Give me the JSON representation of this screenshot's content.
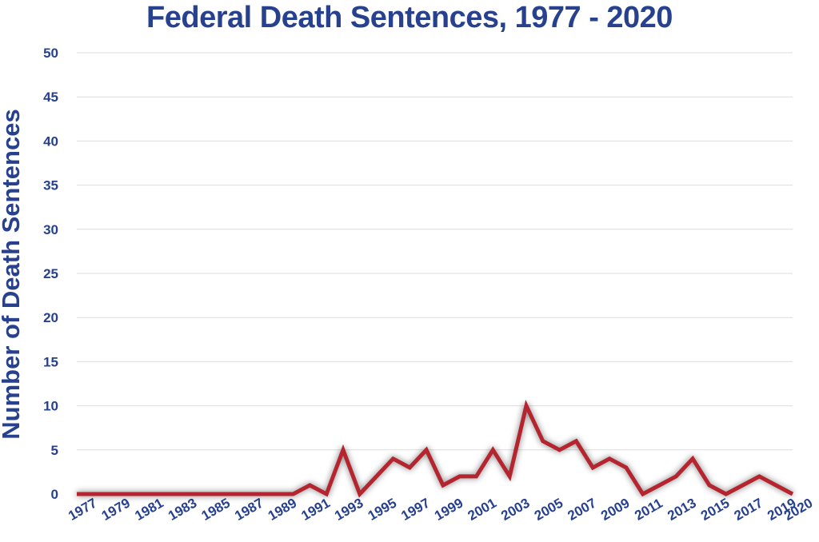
{
  "chart_data": {
    "type": "line",
    "title": "Federal Death Sentences, 1977 - 2020",
    "xlabel": "",
    "ylabel": "Number of Death Sentences",
    "ylim": [
      0,
      50
    ],
    "yticks": [
      "0",
      "5",
      "10",
      "15",
      "20",
      "25",
      "30",
      "35",
      "40",
      "45",
      "50"
    ],
    "xticks": [
      "1977",
      "1979",
      "1981",
      "1983",
      "1985",
      "1987",
      "1989",
      "1991",
      "1993",
      "1995",
      "1997",
      "1999",
      "2001",
      "2003",
      "2005",
      "2007",
      "2009",
      "2011",
      "2013",
      "2015",
      "2017",
      "2019",
      "2020"
    ],
    "grid": true,
    "line_color": "#b5252f",
    "text_color": "#27418f",
    "series": [
      {
        "x": [
          1977,
          1978,
          1979,
          1980,
          1981,
          1982,
          1983,
          1984,
          1985,
          1986,
          1987,
          1988,
          1989,
          1990,
          1991,
          1992,
          1993,
          1994,
          1995,
          1996,
          1997,
          1998,
          1999,
          2000,
          2001,
          2002,
          2003,
          2004,
          2005,
          2006,
          2007,
          2008,
          2009,
          2010,
          2011,
          2012,
          2013,
          2014,
          2015,
          2016,
          2017,
          2018,
          2019,
          2020
        ],
        "y": [
          0,
          0,
          0,
          0,
          0,
          0,
          0,
          0,
          0,
          0,
          0,
          0,
          0,
          0,
          1,
          0,
          5,
          0,
          2,
          4,
          3,
          5,
          1,
          2,
          2,
          5,
          2,
          10,
          6,
          5,
          6,
          3,
          4,
          3,
          0,
          1,
          2,
          4,
          1,
          0,
          1,
          2,
          1,
          0
        ]
      }
    ]
  }
}
